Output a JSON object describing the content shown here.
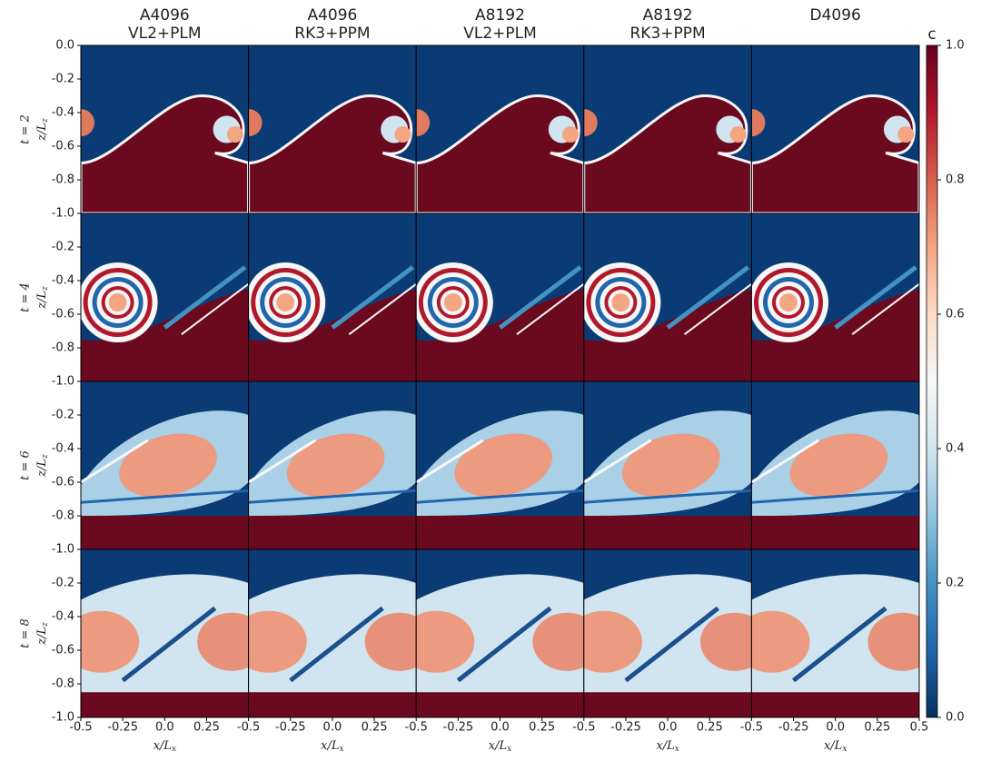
{
  "figure": {
    "columns": [
      {
        "title": [
          "A4096",
          "VL2+PLM"
        ]
      },
      {
        "title": [
          "A4096",
          "RK3+PPM"
        ]
      },
      {
        "title": [
          "A8192",
          "VL2+PLM"
        ]
      },
      {
        "title": [
          "A8192",
          "RK3+PPM"
        ]
      },
      {
        "title": [
          "D4096"
        ]
      }
    ],
    "rows": [
      {
        "label": "t = 2",
        "yticks": [
          {
            "value": 0,
            "label": "0.0"
          },
          -0.2,
          -0.4,
          -0.6,
          -0.8,
          {
            "value": -1,
            "label": "-1.0"
          }
        ]
      },
      {
        "label": "t = 4",
        "yticks": [
          -0.2,
          -0.4,
          -0.6,
          -0.8,
          {
            "value": -1,
            "label": "-1.0"
          }
        ]
      },
      {
        "label": "t = 6",
        "yticks": [
          -0.2,
          -0.4,
          -0.6,
          -0.8,
          {
            "value": -1,
            "label": "-1.0"
          }
        ]
      },
      {
        "label": "t = 8",
        "yticks": [
          -0.2,
          -0.4,
          -0.6,
          -0.8,
          {
            "value": -1,
            "label": "-1.0"
          }
        ]
      }
    ],
    "column_xticks": [
      [
        -0.5,
        -0.25,
        {
          "value": 0,
          "label": "0.0"
        },
        0.25
      ],
      [
        -0.5,
        -0.25,
        {
          "value": 0,
          "label": "0.0"
        },
        0.25
      ],
      [
        -0.5,
        -0.25,
        {
          "value": 0,
          "label": "0.0"
        },
        0.25
      ],
      [
        -0.5,
        -0.25,
        {
          "value": 0,
          "label": "0.0"
        },
        0.25
      ],
      [
        -0.5,
        -0.25,
        {
          "value": 0,
          "label": "0.0"
        },
        0.25,
        0.5
      ]
    ],
    "xlim": [
      -0.5,
      0.5
    ],
    "ylim": [
      -1,
      0
    ],
    "ylabel": {
      "main": "z/L",
      "sub": "z"
    },
    "xlabel": {
      "main": "x/L",
      "sub": "x"
    },
    "colorbar": {
      "label": "c",
      "clim": [
        0,
        1
      ],
      "ticks": [
        {
          "value": 0,
          "label": "0.0"
        },
        0.2,
        0.4,
        0.6,
        0.8,
        {
          "value": 1,
          "label": "1.0"
        }
      ]
    }
  }
}
